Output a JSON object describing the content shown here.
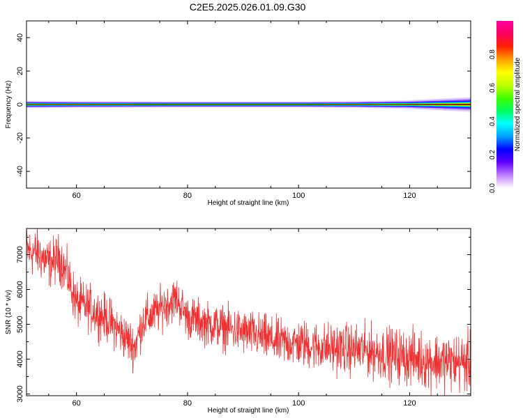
{
  "figure": {
    "title": "C2E5.2025.026.01.09.G30"
  },
  "colors": {
    "background": "#ffffff",
    "axis": "#000000",
    "snr_line": "#f03030",
    "spectrum_center": "#000000"
  },
  "chart_data": [
    {
      "type": "heatmap",
      "title": "C2E5.2025.026.01.09.G30",
      "xlabel": "Height of straight line (km)",
      "ylabel": "Frequency (Hz)",
      "xlim": [
        51,
        131
      ],
      "ylim": [
        -50,
        50
      ],
      "xticks": [
        60,
        80,
        100,
        120
      ],
      "yticks": [
        40,
        20,
        0,
        -20,
        -40
      ],
      "band_halfwidth_hz": [
        {
          "x": 51,
          "value": 2.2
        },
        {
          "x": 60,
          "value": 2.0
        },
        {
          "x": 80,
          "value": 1.8
        },
        {
          "x": 100,
          "value": 1.8
        },
        {
          "x": 110,
          "value": 2.0
        },
        {
          "x": 120,
          "value": 2.6
        },
        {
          "x": 131,
          "value": 4.5
        }
      ],
      "colorbar": {
        "label": "Normalized spectral amplitude",
        "range": [
          0,
          1
        ],
        "ticks": [
          "0.0",
          "0.2",
          "0.4",
          "0.6",
          "0.8"
        ],
        "colors": [
          "#ffffff",
          "#c080ff",
          "#6000ff",
          "#0000ff",
          "#00a0ff",
          "#00ffff",
          "#00ff60",
          "#40ff00",
          "#c0ff00",
          "#ffff00",
          "#ffa000",
          "#ff2000",
          "#ff0060",
          "#ff00a0"
        ]
      }
    },
    {
      "type": "line",
      "xlabel": "Height of straight line (km)",
      "ylabel": "SNR (10 * v/v)",
      "xlim": [
        51,
        131
      ],
      "ylim": [
        2950,
        7750
      ],
      "xticks": [
        60,
        80,
        100,
        120
      ],
      "yticks": [
        3000,
        4000,
        5000,
        6000,
        7000
      ],
      "trend": [
        {
          "x": 51,
          "value": 7100
        },
        {
          "x": 53,
          "value": 7050
        },
        {
          "x": 55,
          "value": 6750
        },
        {
          "x": 57,
          "value": 6900
        },
        {
          "x": 58.5,
          "value": 6350
        },
        {
          "x": 60,
          "value": 5600
        },
        {
          "x": 62,
          "value": 5500
        },
        {
          "x": 64,
          "value": 5300
        },
        {
          "x": 66,
          "value": 5100
        },
        {
          "x": 68,
          "value": 4750
        },
        {
          "x": 70.5,
          "value": 4350
        },
        {
          "x": 72,
          "value": 5100
        },
        {
          "x": 74,
          "value": 5300
        },
        {
          "x": 76,
          "value": 5550
        },
        {
          "x": 78,
          "value": 5750
        },
        {
          "x": 80,
          "value": 5200
        },
        {
          "x": 84,
          "value": 5000
        },
        {
          "x": 88,
          "value": 4850
        },
        {
          "x": 92,
          "value": 4700
        },
        {
          "x": 96,
          "value": 4500
        },
        {
          "x": 100,
          "value": 4450
        },
        {
          "x": 104,
          "value": 4350
        },
        {
          "x": 108,
          "value": 4300
        },
        {
          "x": 112,
          "value": 4250
        },
        {
          "x": 116,
          "value": 4150
        },
        {
          "x": 120,
          "value": 4050
        },
        {
          "x": 124,
          "value": 3950
        },
        {
          "x": 128,
          "value": 3900
        },
        {
          "x": 131,
          "value": 3900
        }
      ],
      "noise_amplitude": [
        {
          "x": 51,
          "value": 350
        },
        {
          "x": 80,
          "value": 300
        },
        {
          "x": 100,
          "value": 330
        },
        {
          "x": 131,
          "value": 420
        }
      ]
    }
  ]
}
